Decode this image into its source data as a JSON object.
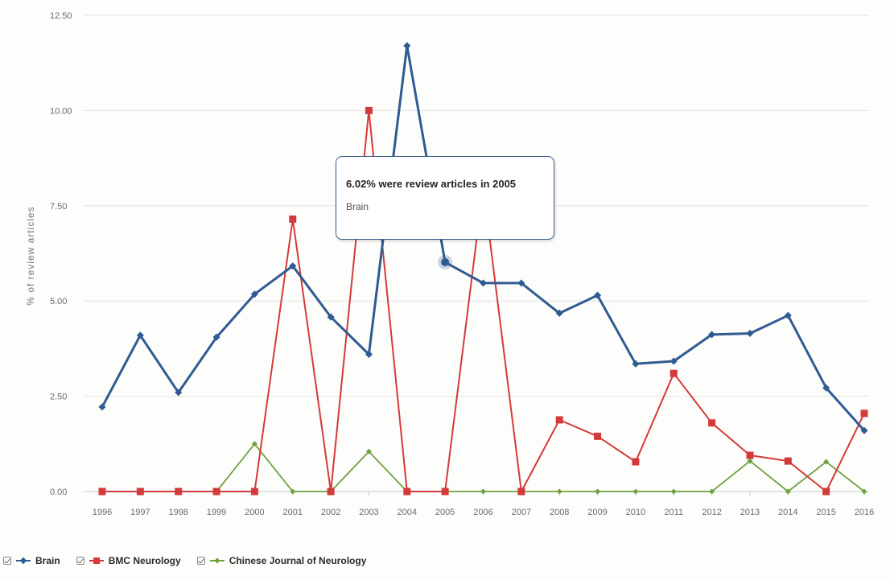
{
  "chart_data": {
    "type": "line",
    "title": "",
    "xlabel": "",
    "ylabel": "% of review articles",
    "x": [
      "1996",
      "1997",
      "1998",
      "1999",
      "2000",
      "2001",
      "2002",
      "2003",
      "2004",
      "2005",
      "2006",
      "2007",
      "2008",
      "2009",
      "2010",
      "2011",
      "2012",
      "2013",
      "2014",
      "2015",
      "2016"
    ],
    "ylim": [
      0,
      12.5
    ],
    "yticks": [
      "0.00",
      "2.50",
      "5.00",
      "7.50",
      "10.00",
      "12.50"
    ],
    "grid": "horizontal",
    "legend_position": "bottom-left",
    "series": [
      {
        "name": "Brain",
        "color": "#2f5b92",
        "marker": "diamond",
        "values": [
          2.22,
          4.1,
          2.6,
          4.05,
          5.18,
          5.92,
          4.58,
          3.6,
          11.7,
          6.02,
          5.47,
          5.47,
          4.68,
          5.15,
          3.35,
          3.42,
          4.12,
          4.15,
          4.62,
          2.72,
          1.6
        ]
      },
      {
        "name": "BMC Neurology",
        "color": "#d43a3a",
        "marker": "square",
        "values": [
          0,
          0,
          0,
          0,
          0,
          7.15,
          0,
          10.0,
          0,
          0,
          8.0,
          0,
          1.88,
          1.45,
          0.78,
          3.1,
          1.8,
          0.95,
          0.8,
          0,
          2.05
        ]
      },
      {
        "name": "Chinese Journal of Neurology",
        "color": "#6fa140",
        "marker": "diamond",
        "values": [
          0,
          0,
          0,
          0,
          1.25,
          0,
          0,
          1.05,
          0,
          0,
          0,
          0,
          0,
          0,
          0,
          0,
          0,
          0.8,
          0,
          0.78,
          0
        ]
      }
    ],
    "tooltip": {
      "title": "6.02% were review articles in 2005",
      "series": "Brain",
      "x_index": 9
    }
  }
}
